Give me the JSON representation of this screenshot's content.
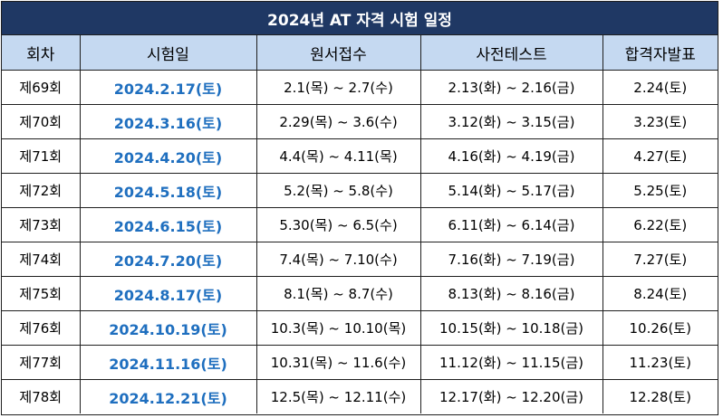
{
  "title": "2024년 AT 자격 시험 일정",
  "colors": {
    "title_bg": "#1f3864",
    "header_bg": "#c5d9f1",
    "exam_date_text": "#1f6fbf"
  },
  "headers": [
    "회차",
    "시험일",
    "원서접수",
    "사전테스트",
    "합격자발표"
  ],
  "rows": [
    {
      "round": "제69회",
      "exam_date": "2024.2.17(토)",
      "application": "2.1(목) ~ 2.7(수)",
      "pretest": "2.13(화) ~ 2.16(금)",
      "result": "2.24(토)"
    },
    {
      "round": "제70회",
      "exam_date": "2024.3.16(토)",
      "application": "2.29(목) ~ 3.6(수)",
      "pretest": "3.12(화) ~ 3.15(금)",
      "result": "3.23(토)"
    },
    {
      "round": "제71회",
      "exam_date": "2024.4.20(토)",
      "application": "4.4(목) ~ 4.11(목)",
      "pretest": "4.16(화) ~ 4.19(금)",
      "result": "4.27(토)"
    },
    {
      "round": "제72회",
      "exam_date": "2024.5.18(토)",
      "application": "5.2(목) ~ 5.8(수)",
      "pretest": "5.14(화) ~ 5.17(금)",
      "result": "5.25(토)"
    },
    {
      "round": "제73회",
      "exam_date": "2024.6.15(토)",
      "application": "5.30(목) ~ 6.5(수)",
      "pretest": "6.11(화) ~ 6.14(금)",
      "result": "6.22(토)"
    },
    {
      "round": "제74회",
      "exam_date": "2024.7.20(토)",
      "application": "7.4(목) ~ 7.10(수)",
      "pretest": "7.16(화) ~ 7.19(금)",
      "result": "7.27(토)"
    },
    {
      "round": "제75회",
      "exam_date": "2024.8.17(토)",
      "application": "8.1(목) ~ 8.7(수)",
      "pretest": "8.13(화) ~ 8.16(금)",
      "result": "8.24(토)"
    },
    {
      "round": "제76회",
      "exam_date": "2024.10.19(토)",
      "application": "10.3(목) ~ 10.10(목)",
      "pretest": "10.15(화) ~ 10.18(금)",
      "result": "10.26(토)"
    },
    {
      "round": "제77회",
      "exam_date": "2024.11.16(토)",
      "application": "10.31(목) ~ 11.6(수)",
      "pretest": "11.12(화) ~ 11.15(금)",
      "result": "11.23(토)"
    },
    {
      "round": "제78회",
      "exam_date": "2024.12.21(토)",
      "application": "12.5(목) ~ 12.11(수)",
      "pretest": "12.17(화) ~ 12.20(금)",
      "result": "12.28(토)"
    }
  ]
}
